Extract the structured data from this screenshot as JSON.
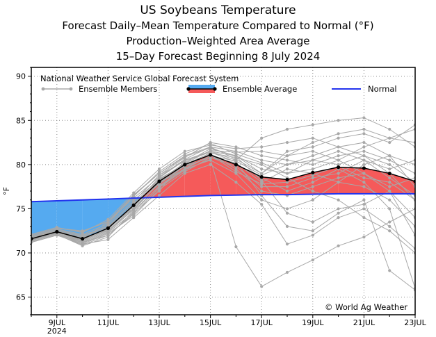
{
  "titles": {
    "line1": "US Soybeans Temperature",
    "line2": "Forecast Daily–Mean Temperature Compared to Normal (°F)",
    "line3": "Production–Weighted Area Average",
    "line4": "15–Day Forecast Beginning 8 July 2024"
  },
  "legend": {
    "header": "National Weather Service Global Forecast System",
    "members": "Ensemble Members",
    "average": "Ensemble Average",
    "normal": "Normal"
  },
  "copyright": "© World Ag Weather",
  "colors": {
    "above_normal": "#f55a5a",
    "below_normal": "#55aaf0",
    "normal_line": "#2233ee",
    "members": "#a8a8a8",
    "average": "#000000",
    "grid": "#888888"
  },
  "chart_data": {
    "type": "line",
    "title": "US Soybeans Temperature",
    "subtitle": "Forecast Daily–Mean Temperature Compared to Normal (°F)",
    "ylabel": "°F",
    "xlabel": "",
    "ylim": [
      63,
      91
    ],
    "xlim": [
      8,
      23
    ],
    "yticks": [
      65,
      70,
      75,
      80,
      85,
      90
    ],
    "xticks": [
      9,
      11,
      13,
      15,
      17,
      19,
      21,
      23
    ],
    "xtick_labels": [
      "9JUL",
      "11JUL",
      "13JUL",
      "15JUL",
      "17JUL",
      "19JUL",
      "21JUL",
      "23JUL"
    ],
    "xtick_sublabel": "2024",
    "grid": true,
    "legend_position": "top",
    "x": [
      8,
      9,
      10,
      11,
      12,
      13,
      14,
      15,
      16,
      17,
      18,
      19,
      20,
      21,
      22,
      23
    ],
    "series": [
      {
        "name": "Ensemble Average",
        "values": [
          71.6,
          72.4,
          71.6,
          72.8,
          75.4,
          78.1,
          80.0,
          81.1,
          80.0,
          78.6,
          78.3,
          79.1,
          79.7,
          79.6,
          79.0,
          78.1
        ]
      },
      {
        "name": "Normal",
        "values": [
          75.8,
          75.9,
          76.0,
          76.1,
          76.2,
          76.3,
          76.4,
          76.5,
          76.55,
          76.6,
          76.6,
          76.65,
          76.7,
          76.7,
          76.7,
          76.7
        ]
      }
    ],
    "members": [
      [
        71.5,
        72.2,
        71.2,
        72.0,
        74.5,
        77.0,
        80.5,
        81.5,
        81.0,
        79.0,
        81.0,
        82.5,
        83.5,
        84.0,
        83.0,
        84.0
      ],
      [
        71.8,
        72.5,
        71.8,
        72.5,
        75.0,
        78.0,
        79.5,
        80.5,
        79.0,
        76.0,
        75.0,
        76.0,
        78.0,
        80.0,
        81.0,
        80.0
      ],
      [
        71.2,
        72.0,
        71.0,
        71.5,
        74.0,
        76.5,
        79.0,
        80.0,
        78.0,
        75.5,
        71.0,
        72.0,
        74.0,
        75.0,
        73.0,
        70.5
      ],
      [
        72.0,
        72.8,
        72.5,
        73.5,
        76.5,
        79.0,
        81.0,
        82.0,
        81.5,
        80.5,
        80.0,
        81.0,
        82.0,
        81.0,
        79.0,
        76.0
      ],
      [
        71.6,
        72.3,
        71.5,
        72.8,
        75.5,
        78.5,
        80.5,
        81.5,
        80.5,
        83.0,
        84.0,
        84.5,
        85.0,
        85.3,
        84.0,
        82.0
      ],
      [
        71.3,
        72.1,
        70.8,
        71.8,
        74.8,
        77.5,
        79.5,
        81.0,
        80.0,
        78.5,
        77.0,
        78.0,
        79.5,
        78.0,
        75.0,
        66.0
      ],
      [
        71.9,
        72.6,
        72.0,
        73.0,
        75.8,
        78.8,
        80.8,
        82.5,
        82.0,
        81.0,
        80.5,
        80.0,
        81.0,
        81.5,
        80.5,
        79.0
      ],
      [
        71.4,
        72.3,
        71.3,
        72.5,
        75.2,
        77.8,
        79.8,
        81.2,
        79.5,
        77.0,
        76.5,
        77.5,
        78.5,
        79.0,
        77.0,
        74.0
      ],
      [
        71.7,
        72.4,
        71.7,
        73.2,
        76.0,
        78.2,
        80.2,
        81.8,
        81.0,
        79.5,
        79.0,
        80.5,
        80.0,
        81.0,
        80.0,
        78.0
      ],
      [
        71.5,
        72.2,
        71.0,
        72.2,
        74.2,
        77.2,
        79.2,
        80.8,
        80.2,
        78.0,
        79.5,
        79.0,
        78.0,
        77.5,
        76.0,
        73.0
      ],
      [
        72.1,
        72.9,
        72.3,
        73.8,
        76.8,
        79.5,
        81.5,
        82.2,
        81.8,
        82.0,
        82.5,
        83.0,
        82.0,
        82.5,
        81.0,
        77.5
      ],
      [
        71.2,
        72.0,
        71.4,
        72.6,
        75.6,
        78.4,
        80.0,
        81.3,
        80.8,
        80.0,
        78.5,
        77.0,
        76.0,
        74.0,
        72.5,
        70.0
      ],
      [
        71.8,
        72.6,
        71.9,
        73.0,
        75.0,
        78.0,
        79.8,
        80.8,
        79.8,
        77.5,
        77.5,
        78.5,
        79.0,
        80.5,
        79.5,
        80.5
      ],
      [
        71.6,
        72.5,
        71.6,
        73.5,
        76.2,
        78.6,
        80.6,
        82.0,
        80.6,
        79.0,
        81.5,
        82.0,
        83.0,
        83.5,
        82.5,
        84.5
      ],
      [
        71.4,
        72.2,
        71.1,
        72.3,
        74.6,
        77.6,
        79.6,
        81.0,
        80.4,
        78.8,
        80.0,
        80.5,
        81.5,
        80.5,
        78.5,
        76.5
      ],
      [
        71.9,
        72.7,
        72.1,
        73.3,
        76.4,
        79.2,
        81.2,
        82.4,
        81.2,
        80.2,
        79.0,
        79.5,
        80.5,
        79.0,
        77.5,
        78.5
      ],
      [
        71.3,
        72.1,
        70.9,
        72.0,
        74.4,
        77.4,
        79.4,
        80.6,
        70.7,
        66.2,
        67.8,
        69.2,
        70.8,
        71.8,
        73.5,
        75.0
      ],
      [
        71.7,
        72.5,
        71.8,
        72.9,
        75.8,
        78.8,
        80.4,
        81.4,
        80.3,
        76.5,
        73.0,
        72.5,
        74.5,
        76.0,
        68.0,
        65.8
      ],
      [
        71.5,
        72.3,
        71.4,
        72.7,
        75.3,
        78.3,
        80.1,
        81.6,
        81.4,
        81.5,
        81.0,
        81.5,
        80.5,
        82.0,
        83.0,
        82.5
      ],
      [
        72.0,
        72.8,
        72.4,
        73.6,
        76.6,
        79.0,
        80.9,
        81.9,
        80.9,
        78.2,
        74.5,
        73.5,
        75.0,
        75.5,
        77.0,
        72.0
      ],
      [
        71.4,
        72.2,
        71.2,
        72.4,
        74.9,
        77.9,
        79.9,
        81.1,
        79.2,
        77.8,
        78.0,
        78.8,
        79.8,
        78.5,
        78.0,
        76.0
      ]
    ]
  }
}
